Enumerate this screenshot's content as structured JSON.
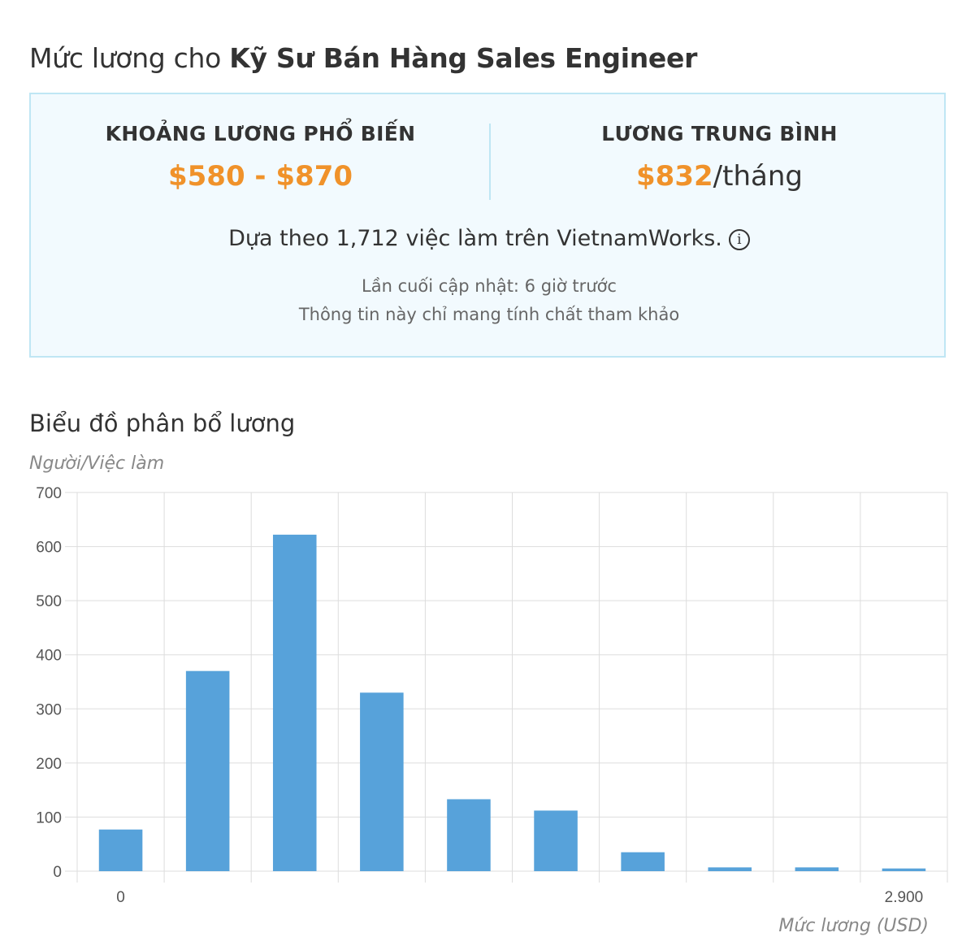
{
  "header": {
    "title_prefix": "Mức lương cho ",
    "title_job": "Kỹ Sư Bán Hàng Sales Engineer"
  },
  "summary": {
    "range_label": "KHOẢNG LƯƠNG PHỔ BIẾN",
    "range_value": "$580 - $870",
    "avg_label": "LƯƠNG TRUNG BÌNH",
    "avg_value": "$832",
    "avg_unit": "/tháng",
    "based_on": "Dựa theo 1,712 việc làm trên VietnamWorks.",
    "info_icon": "info-icon",
    "updated": "Lần cuối cập nhật: 6 giờ trước",
    "disclaimer": "Thông tin này chỉ mang tính chất tham khảo"
  },
  "colors": {
    "accent_orange": "#f0922a",
    "bar_blue": "#57a2da",
    "box_border": "#bfe6f4",
    "box_background": "#f2fafe"
  },
  "chart_data": {
    "type": "bar",
    "title": "Biểu đồ phân bổ lương",
    "ylabel": "Người/Việc làm",
    "xlabel": "Mức lương (USD)",
    "ylim": [
      0,
      700
    ],
    "yticks": [
      0,
      100,
      200,
      300,
      400,
      500,
      600,
      700
    ],
    "x_tick_labels": [
      "0",
      "",
      "",
      "",
      "",
      "",
      "",
      "",
      "",
      "2,900"
    ],
    "values": [
      77,
      370,
      622,
      330,
      133,
      112,
      35,
      7,
      7,
      5
    ],
    "grid": true
  }
}
